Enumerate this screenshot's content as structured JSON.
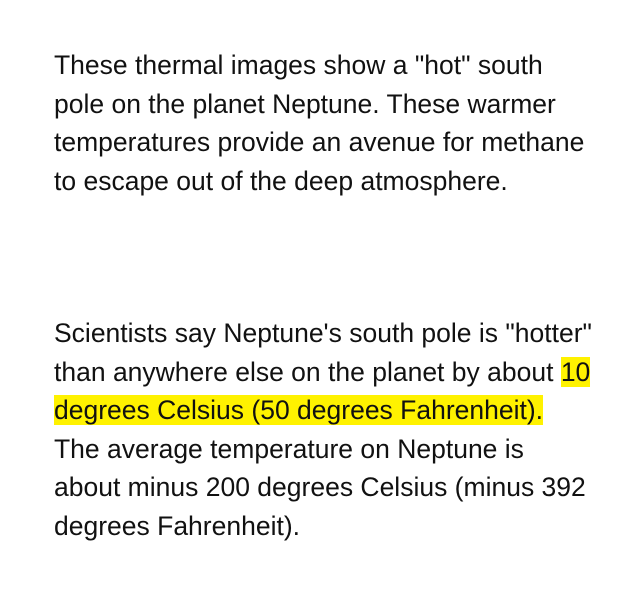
{
  "document": {
    "paragraph_1": "These thermal images show a \"hot\" south pole on the planet Neptune. These warmer temperatures provide an avenue for methane to escape out of the deep atmosphere.",
    "paragraph_2": {
      "before": "Scientists say Neptune's south pole is \"hotter\" than anywhere else on the planet by about ",
      "highlighted": "10 degrees Celsius (50 degrees Fahrenheit).",
      "after": " The average temperature on Neptune is about minus 200 degrees Celsius (minus 392 degrees Fahrenheit)."
    },
    "highlight_color": "#fff200",
    "text_color": "#111111"
  }
}
